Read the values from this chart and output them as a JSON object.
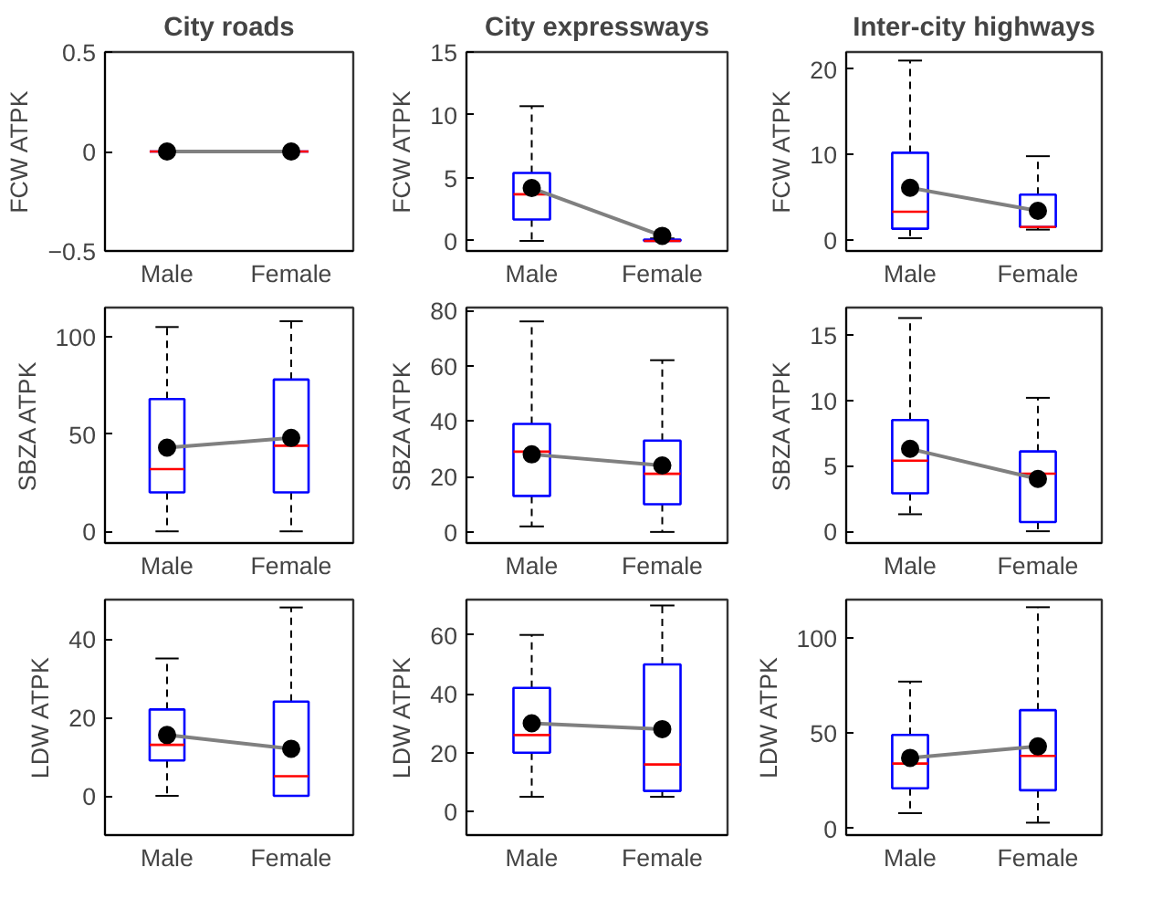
{
  "chart_data": [
    {
      "type": "box",
      "title": "City roads",
      "ylabel": "FCW ATPK",
      "categories": [
        "Male",
        "Female"
      ],
      "ylim": [
        -0.5,
        0.5
      ],
      "yticks": [
        -0.5,
        0,
        0.5
      ],
      "marker": "circle",
      "boxes": [
        {
          "low": 0,
          "q1": 0,
          "median": 0,
          "q3": 0,
          "high": 0
        },
        {
          "low": 0,
          "q1": 0,
          "median": 0,
          "q3": 0,
          "high": 0
        }
      ],
      "series": [
        {
          "type": "line",
          "color": "#808080",
          "values": [
            0,
            0
          ]
        }
      ]
    },
    {
      "type": "box",
      "title": "City expressways",
      "ylabel": "FCW ATPK",
      "categories": [
        "Male",
        "Female"
      ],
      "ylim": [
        -0.8,
        15
      ],
      "yticks": [
        0,
        5,
        10,
        15
      ],
      "marker": "circle",
      "boxes": [
        {
          "low": 0,
          "q1": 1.7,
          "median": 3.7,
          "q3": 5.4,
          "high": 10.7
        },
        {
          "low": 0,
          "q1": 0,
          "median": 0,
          "q3": 0.1,
          "high": 0.2
        }
      ],
      "series": [
        {
          "type": "line",
          "color": "#808080",
          "values": [
            4.2,
            0.4
          ]
        }
      ]
    },
    {
      "type": "box",
      "title": "Inter-city highways",
      "ylabel": "FCW ATPK",
      "categories": [
        "Male",
        "Female"
      ],
      "ylim": [
        -1.3,
        22
      ],
      "yticks": [
        0,
        10,
        20
      ],
      "marker": "circle",
      "boxes": [
        {
          "low": 0.2,
          "q1": 1.3,
          "median": 3.3,
          "q3": 10.2,
          "high": 21
        },
        {
          "low": 1.2,
          "q1": 1.5,
          "median": 1.5,
          "q3": 5.3,
          "high": 9.8
        }
      ],
      "series": [
        {
          "type": "line",
          "color": "#808080",
          "values": [
            6.1,
            3.4
          ]
        }
      ]
    },
    {
      "type": "box",
      "ylabel": "SBZA ATPK",
      "categories": [
        "Male",
        "Female"
      ],
      "ylim": [
        -6,
        115
      ],
      "yticks": [
        0,
        50,
        100
      ],
      "marker": "circle",
      "boxes": [
        {
          "low": 0,
          "q1": 20,
          "median": 32,
          "q3": 68,
          "high": 105
        },
        {
          "low": 0,
          "q1": 20,
          "median": 44,
          "q3": 78,
          "high": 108
        }
      ],
      "series": [
        {
          "type": "line",
          "color": "#808080",
          "values": [
            43,
            48
          ]
        }
      ]
    },
    {
      "type": "box",
      "ylabel": "SBZA ATPK",
      "categories": [
        "Male",
        "Female"
      ],
      "ylim": [
        -4,
        81
      ],
      "yticks": [
        0,
        20,
        40,
        60,
        80
      ],
      "marker": "circle",
      "boxes": [
        {
          "low": 2,
          "q1": 13,
          "median": 29,
          "q3": 39,
          "high": 76
        },
        {
          "low": 0,
          "q1": 10,
          "median": 21,
          "q3": 33,
          "high": 62
        }
      ],
      "series": [
        {
          "type": "line",
          "color": "#808080",
          "values": [
            28,
            24
          ]
        }
      ]
    },
    {
      "type": "box",
      "ylabel": "SBZA ATPK",
      "categories": [
        "Male",
        "Female"
      ],
      "ylim": [
        -0.9,
        17.1
      ],
      "yticks": [
        0,
        5,
        10,
        15
      ],
      "marker": "circle",
      "boxes": [
        {
          "low": 1.3,
          "q1": 2.9,
          "median": 5.4,
          "q3": 8.5,
          "high": 16.3
        },
        {
          "low": 0,
          "q1": 0.7,
          "median": 4.4,
          "q3": 6.1,
          "high": 10.2
        }
      ],
      "series": [
        {
          "type": "line",
          "color": "#808080",
          "values": [
            6.3,
            4
          ]
        }
      ]
    },
    {
      "type": "box",
      "ylabel": "LDW ATPK",
      "categories": [
        "Male",
        "Female"
      ],
      "ylim": [
        -10,
        50
      ],
      "yticks": [
        0,
        20,
        40
      ],
      "marker": "circle",
      "boxes": [
        {
          "low": 0,
          "q1": 9,
          "median": 13,
          "q3": 22,
          "high": 35
        },
        {
          "low": 0,
          "q1": 0,
          "median": 5,
          "q3": 24,
          "high": 48
        }
      ],
      "series": [
        {
          "type": "line",
          "color": "#808080",
          "values": [
            15.5,
            12
          ]
        }
      ]
    },
    {
      "type": "box",
      "ylabel": "LDW ATPK",
      "categories": [
        "Male",
        "Female"
      ],
      "ylim": [
        -8,
        72
      ],
      "yticks": [
        0,
        20,
        40,
        60
      ],
      "marker": "circle",
      "boxes": [
        {
          "low": 5,
          "q1": 20,
          "median": 26,
          "q3": 42,
          "high": 60
        },
        {
          "low": 5,
          "q1": 7,
          "median": 16,
          "q3": 50,
          "high": 70
        }
      ],
      "series": [
        {
          "type": "line",
          "color": "#808080",
          "values": [
            30,
            28
          ]
        }
      ]
    },
    {
      "type": "box",
      "ylabel": "LDW ATPK",
      "categories": [
        "Male",
        "Female"
      ],
      "ylim": [
        -3.5,
        120
      ],
      "yticks": [
        0,
        50,
        100
      ],
      "marker": "circle",
      "boxes": [
        {
          "low": 8,
          "q1": 21,
          "median": 34,
          "q3": 49,
          "high": 77
        },
        {
          "low": 3,
          "q1": 20,
          "median": 38,
          "q3": 62,
          "high": 116
        }
      ],
      "series": [
        {
          "type": "line",
          "color": "#808080",
          "values": [
            37,
            43
          ]
        }
      ]
    }
  ]
}
